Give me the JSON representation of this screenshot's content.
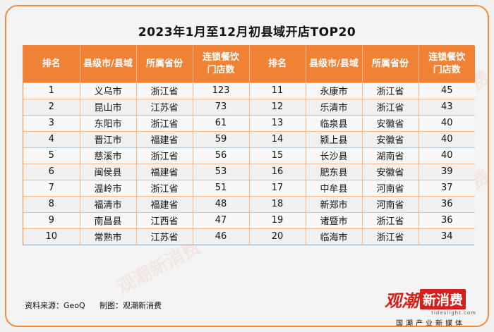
{
  "title": "2023年1月至12月初县域开店TOP20",
  "headers": [
    "排名",
    "县级市/县域",
    "所属省份",
    "连锁餐饮\n门店数",
    "排名",
    "县级市/县域",
    "所属省份",
    "连锁餐饮\n门店数"
  ],
  "rows": [
    [
      "1",
      "义乌市",
      "浙江省",
      "123",
      "11",
      "永康市",
      "浙江省",
      "45"
    ],
    [
      "2",
      "昆山市",
      "江苏省",
      "73",
      "12",
      "乐清市",
      "浙江省",
      "43"
    ],
    [
      "3",
      "东阳市",
      "浙江省",
      "61",
      "13",
      "临泉县",
      "安徽省",
      "40"
    ],
    [
      "4",
      "晋江市",
      "福建省",
      "59",
      "14",
      "颍上县",
      "安徽省",
      "40"
    ],
    [
      "5",
      "慈溪市",
      "浙江省",
      "56",
      "15",
      "长沙县",
      "湖南省",
      "40"
    ],
    [
      "6",
      "闽侯县",
      "福建省",
      "53",
      "16",
      "肥东县",
      "安徽省",
      "39"
    ],
    [
      "7",
      "温岭市",
      "浙江省",
      "51",
      "17",
      "中牟县",
      "河南省",
      "37"
    ],
    [
      "8",
      "福清市",
      "福建省",
      "48",
      "18",
      "新郑市",
      "河南省",
      "36"
    ],
    [
      "9",
      "南昌县",
      "江西省",
      "47",
      "19",
      "诸暨市",
      "浙江省",
      "36"
    ],
    [
      "10",
      "常熟市",
      "江苏省",
      "46",
      "20",
      "临海市",
      "浙江省",
      "34"
    ]
  ],
  "footer": {
    "source": "资料来源：GeoQ",
    "producer": "制图：观潮新消费"
  },
  "logo": {
    "part1": "观潮",
    "part2": "新消费",
    "url": "tideslight.com",
    "slogan": "国潮产业新媒体"
  },
  "watermark": "观潮新消费",
  "colors": {
    "header_bg": "#ef8234",
    "border": "#f08c3c",
    "logo_red": "#d4201a"
  },
  "chart_data": {
    "type": "table",
    "title": "2023年1月至12月初县域开店TOP20",
    "columns": [
      "排名",
      "县级市/县域",
      "所属省份",
      "连锁餐饮门店数"
    ],
    "records": [
      [
        1,
        "义乌市",
        "浙江省",
        123
      ],
      [
        2,
        "昆山市",
        "江苏省",
        73
      ],
      [
        3,
        "东阳市",
        "浙江省",
        61
      ],
      [
        4,
        "晋江市",
        "福建省",
        59
      ],
      [
        5,
        "慈溪市",
        "浙江省",
        56
      ],
      [
        6,
        "闽侯县",
        "福建省",
        53
      ],
      [
        7,
        "温岭市",
        "浙江省",
        51
      ],
      [
        8,
        "福清市",
        "福建省",
        48
      ],
      [
        9,
        "南昌县",
        "江西省",
        47
      ],
      [
        10,
        "常熟市",
        "江苏省",
        46
      ],
      [
        11,
        "永康市",
        "浙江省",
        45
      ],
      [
        12,
        "乐清市",
        "浙江省",
        43
      ],
      [
        13,
        "临泉县",
        "安徽省",
        40
      ],
      [
        14,
        "颍上县",
        "安徽省",
        40
      ],
      [
        15,
        "长沙县",
        "湖南省",
        40
      ],
      [
        16,
        "肥东县",
        "安徽省",
        39
      ],
      [
        17,
        "中牟县",
        "河南省",
        37
      ],
      [
        18,
        "新郑市",
        "河南省",
        36
      ],
      [
        19,
        "诸暨市",
        "浙江省",
        36
      ],
      [
        20,
        "临海市",
        "浙江省",
        34
      ]
    ]
  }
}
